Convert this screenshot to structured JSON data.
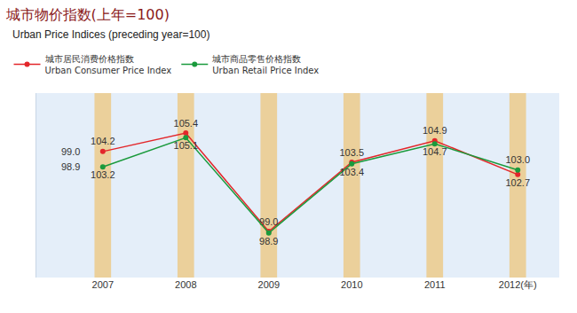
{
  "chart_data": {
    "type": "line",
    "title": "城市物价指数(上年=100)",
    "subtitle": "Urban Price Indices (preceding year=100)",
    "categories": [
      "2007",
      "2008",
      "2009",
      "2010",
      "2011",
      "2012(年)"
    ],
    "series": [
      {
        "name": "城市居民消费价格指数\nUrban Consumer Price Index",
        "color": "#e3262a",
        "values": [
          104.2,
          105.4,
          99.0,
          103.5,
          104.9,
          102.7
        ],
        "value_labels": [
          "104.2",
          "105.4",
          "99.0",
          "103.5",
          "104.9",
          "102.7"
        ],
        "annotation": "99.0"
      },
      {
        "name": "城市商品零售价格指数\nUrban Retail Price Index",
        "color": "#1a9a3c",
        "values": [
          103.2,
          105.1,
          98.9,
          103.4,
          104.7,
          103.0
        ],
        "value_labels": [
          "103.2",
          "105.1",
          "98.9",
          "103.4",
          "104.7",
          "103.0"
        ],
        "annotation": "98.9"
      }
    ],
    "ylim": [
      96,
      108
    ],
    "grid": false,
    "legend": "top-left",
    "data_labels": true,
    "tick_labels": "x",
    "marker": "circle"
  }
}
